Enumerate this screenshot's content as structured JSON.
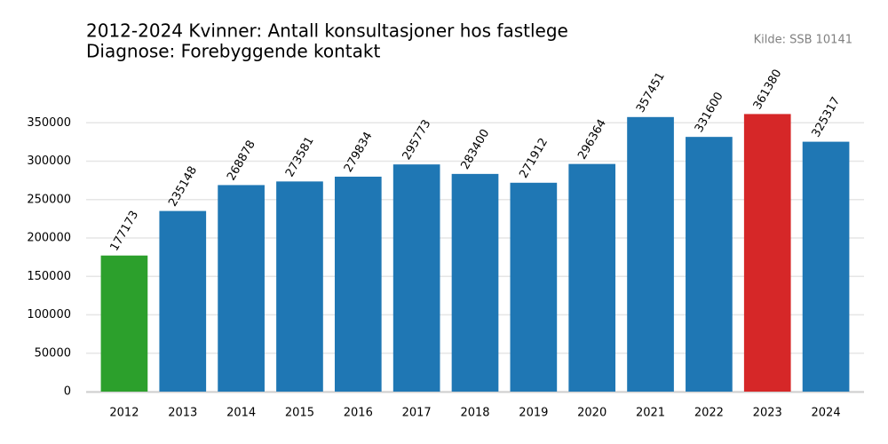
{
  "chart_data": {
    "type": "bar",
    "title": "2012-2024 Kvinner: Antall konsultasjoner hos fastlege",
    "subtitle": "Diagnose: Forebyggende kontakt",
    "source": "Kilde: SSB 10141",
    "categories": [
      "2012",
      "2013",
      "2014",
      "2015",
      "2016",
      "2017",
      "2018",
      "2019",
      "2020",
      "2021",
      "2022",
      "2023",
      "2024"
    ],
    "values": [
      177173,
      235148,
      268878,
      273581,
      279834,
      295773,
      283400,
      271912,
      296364,
      357451,
      331600,
      361380,
      325317
    ],
    "colors": [
      "#2ca02c",
      "#1f77b4",
      "#1f77b4",
      "#1f77b4",
      "#1f77b4",
      "#1f77b4",
      "#1f77b4",
      "#1f77b4",
      "#1f77b4",
      "#1f77b4",
      "#1f77b4",
      "#d62728",
      "#1f77b4"
    ],
    "ylim": [
      0,
      400000
    ],
    "yticks": [
      0,
      50000,
      100000,
      150000,
      200000,
      250000,
      300000,
      350000
    ],
    "grid": true
  }
}
